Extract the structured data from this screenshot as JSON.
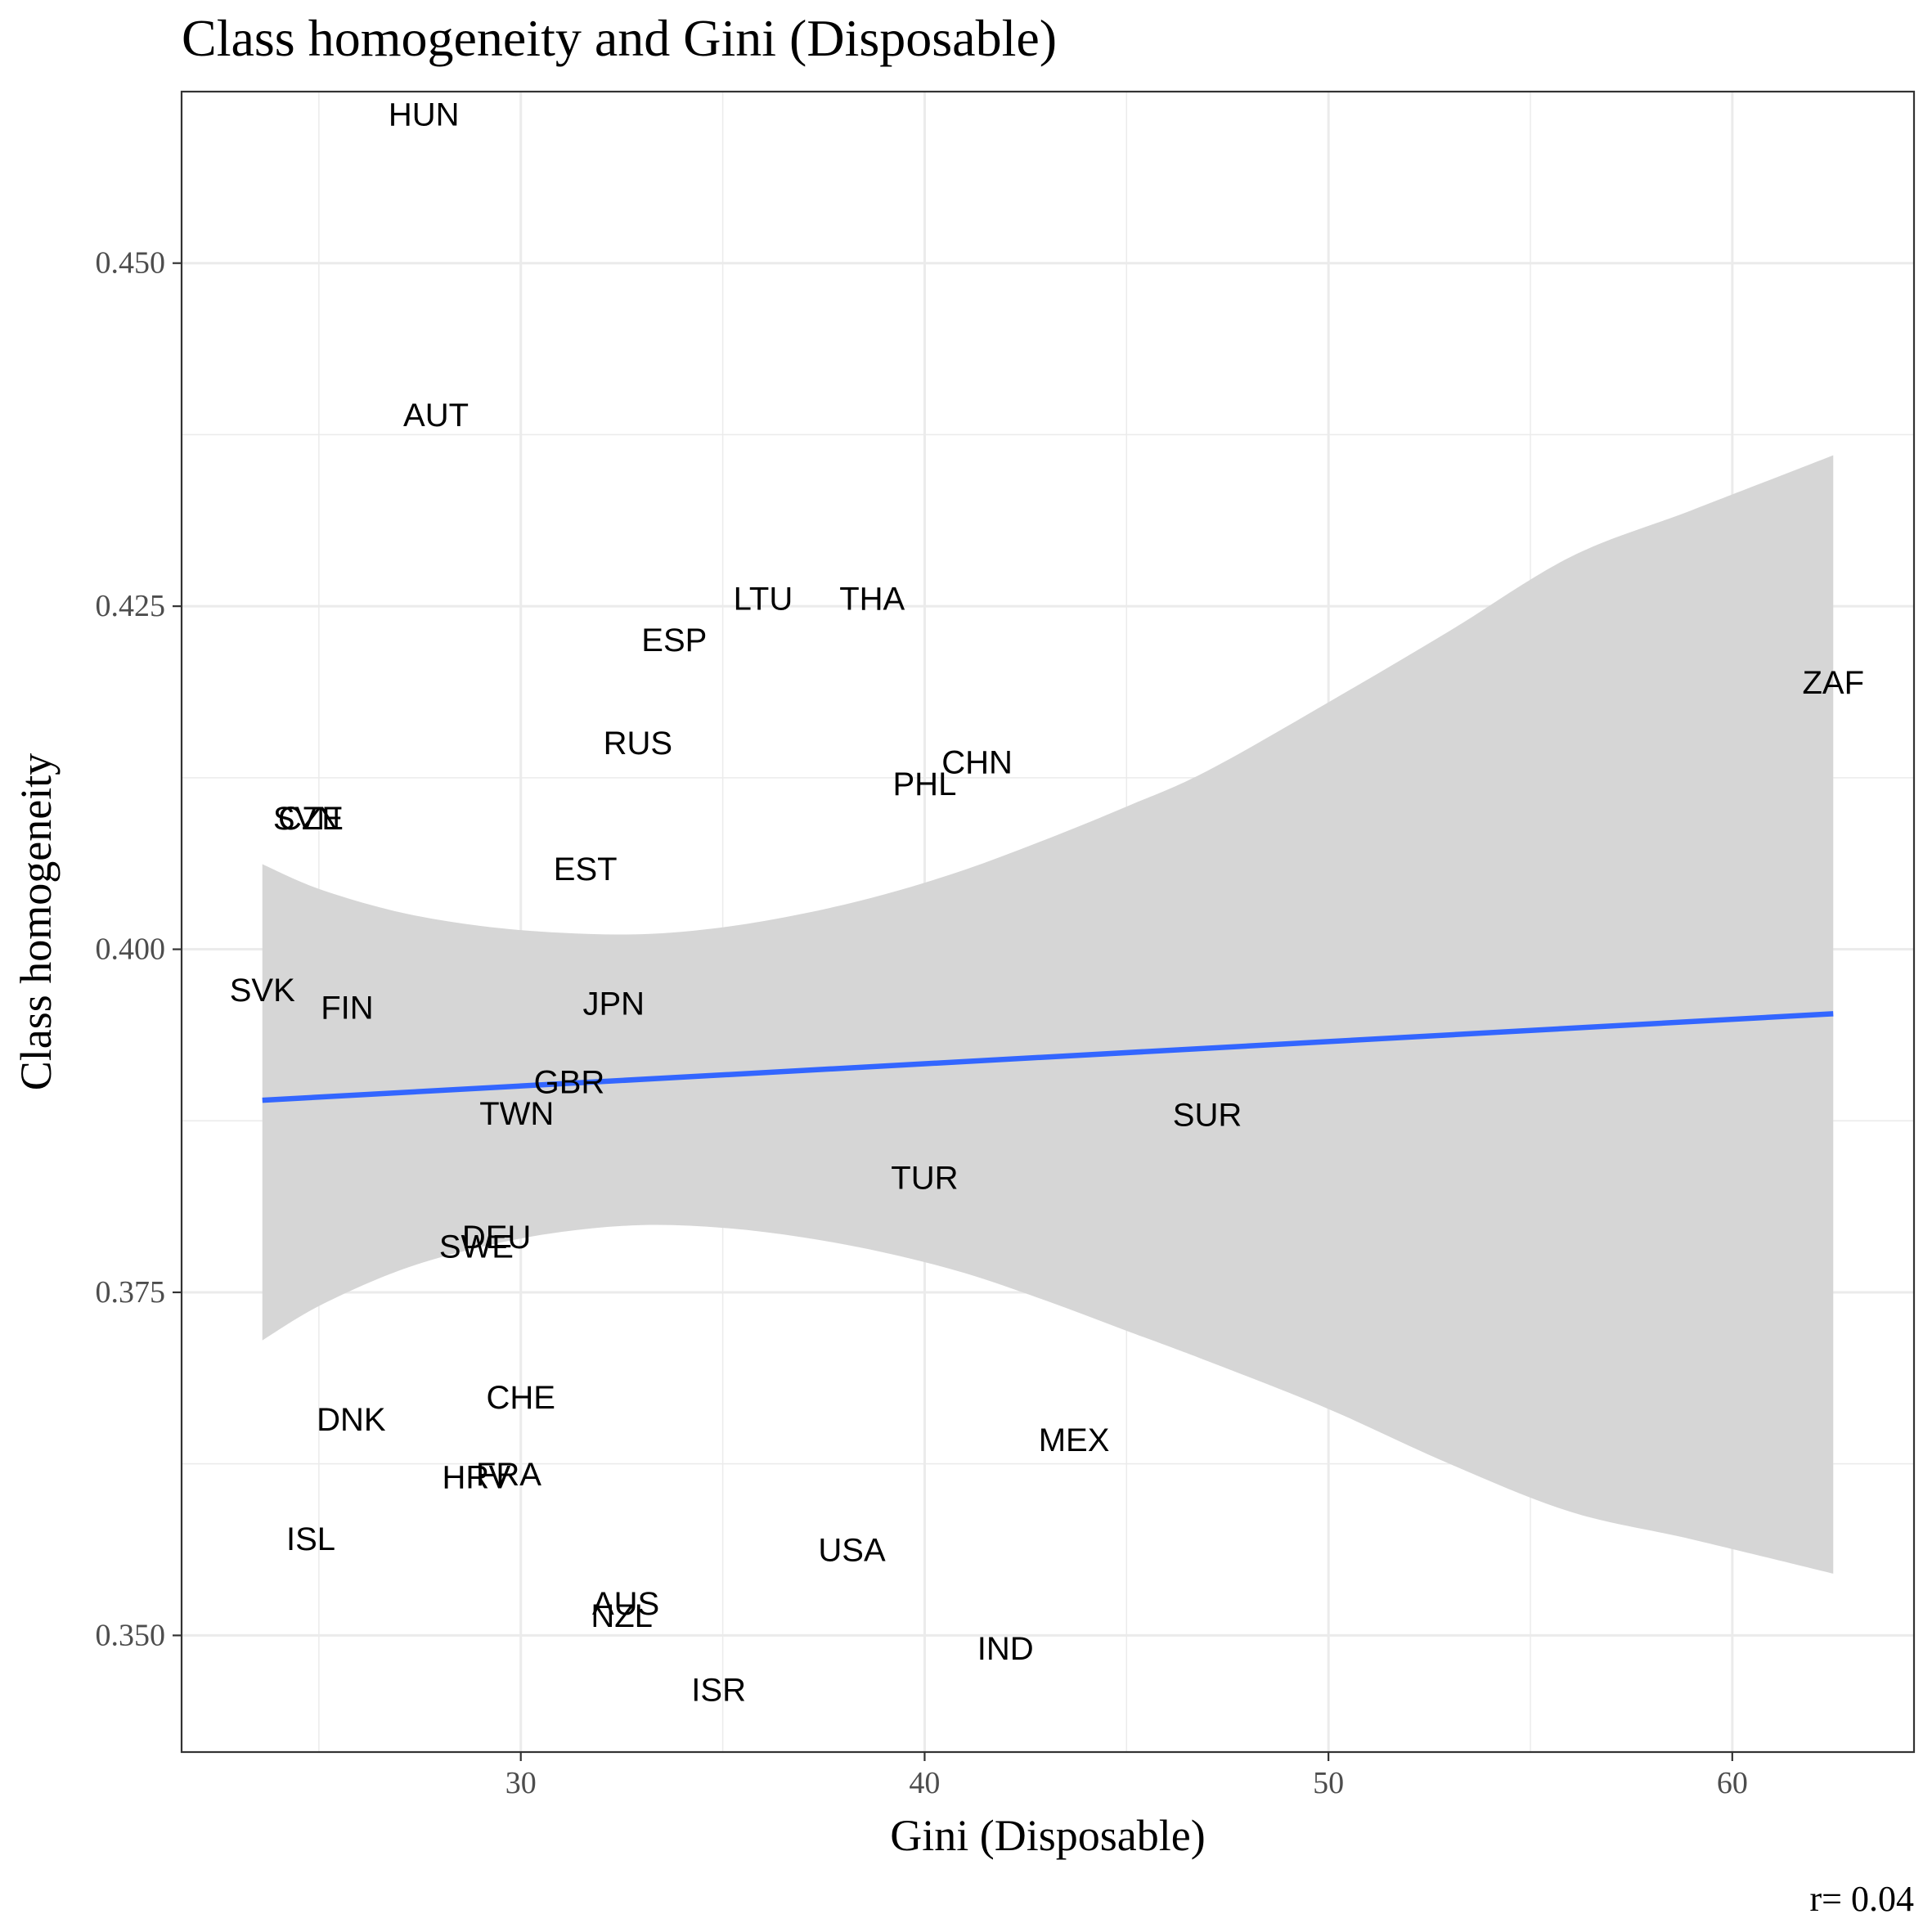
{
  "chart_data": {
    "type": "scatter",
    "title": "Class homogeneity and Gini (Disposable)",
    "xlabel": "Gini (Disposable)",
    "ylabel": "Class homogeneity",
    "caption": "r= 0.04",
    "xlim": [
      21.6,
      64.5
    ],
    "ylim": [
      0.3415,
      0.4625
    ],
    "x_ticks": [
      30,
      40,
      50,
      60
    ],
    "x_tick_labels": [
      "30",
      "40",
      "50",
      "60"
    ],
    "y_ticks": [
      0.35,
      0.375,
      0.4,
      0.425,
      0.45
    ],
    "y_tick_labels": [
      "0.350",
      "0.375",
      "0.400",
      "0.425",
      "0.450"
    ],
    "x_minor_ticks": [
      25,
      35,
      45,
      55
    ],
    "y_minor_ticks": [
      0.3625,
      0.3875,
      0.4125,
      0.4375
    ],
    "grid": true,
    "points": [
      {
        "label": "HUN",
        "x": 27.6,
        "y": 0.4608
      },
      {
        "label": "AUT",
        "x": 27.9,
        "y": 0.4389
      },
      {
        "label": "LTU",
        "x": 36.0,
        "y": 0.4255
      },
      {
        "label": "THA",
        "x": 38.7,
        "y": 0.4255
      },
      {
        "label": "ESP",
        "x": 33.8,
        "y": 0.4225
      },
      {
        "label": "ZAF",
        "x": 62.5,
        "y": 0.4194
      },
      {
        "label": "RUS",
        "x": 32.9,
        "y": 0.415
      },
      {
        "label": "CHN",
        "x": 41.3,
        "y": 0.4136
      },
      {
        "label": "PHL",
        "x": 40.0,
        "y": 0.412
      },
      {
        "label": "SVN",
        "x": 24.7,
        "y": 0.4095
      },
      {
        "label": "CZE",
        "x": 24.8,
        "y": 0.4095
      },
      {
        "label": "EST",
        "x": 31.6,
        "y": 0.4058
      },
      {
        "label": "SVK",
        "x": 23.6,
        "y": 0.397
      },
      {
        "label": "FIN",
        "x": 25.7,
        "y": 0.3957
      },
      {
        "label": "JPN",
        "x": 32.3,
        "y": 0.396
      },
      {
        "label": "GBR",
        "x": 31.2,
        "y": 0.3903
      },
      {
        "label": "TWN",
        "x": 29.9,
        "y": 0.388
      },
      {
        "label": "SUR",
        "x": 47.0,
        "y": 0.3879
      },
      {
        "label": "TUR",
        "x": 40.0,
        "y": 0.3833
      },
      {
        "label": "DEU",
        "x": 29.4,
        "y": 0.379
      },
      {
        "label": "SWE",
        "x": 28.9,
        "y": 0.3783
      },
      {
        "label": "CHE",
        "x": 30.0,
        "y": 0.3673
      },
      {
        "label": "DNK",
        "x": 25.8,
        "y": 0.3657
      },
      {
        "label": "MEX",
        "x": 43.7,
        "y": 0.3642
      },
      {
        "label": "HRV",
        "x": 28.9,
        "y": 0.3615
      },
      {
        "label": "FRA",
        "x": 29.7,
        "y": 0.3617
      },
      {
        "label": "ISL",
        "x": 24.8,
        "y": 0.357
      },
      {
        "label": "USA",
        "x": 38.2,
        "y": 0.3562
      },
      {
        "label": "AUS",
        "x": 32.6,
        "y": 0.3523
      },
      {
        "label": "NZL",
        "x": 32.5,
        "y": 0.3514
      },
      {
        "label": "IND",
        "x": 42.0,
        "y": 0.349
      },
      {
        "label": "ISR",
        "x": 34.9,
        "y": 0.346
      }
    ],
    "fit": {
      "method": "lm",
      "color": "#3366FF",
      "x_range": [
        23.6,
        62.5
      ],
      "band_color": "#D6D6D6",
      "line": [
        {
          "x": 23.6,
          "y": 0.389
        },
        {
          "x": 62.5,
          "y": 0.3953
        }
      ],
      "band_upper": [
        {
          "x": 23.6,
          "y": 0.4062
        },
        {
          "x": 25.0,
          "y": 0.4044
        },
        {
          "x": 27.0,
          "y": 0.4027
        },
        {
          "x": 29.0,
          "y": 0.4017
        },
        {
          "x": 31.0,
          "y": 0.4012
        },
        {
          "x": 33.0,
          "y": 0.4011
        },
        {
          "x": 35.0,
          "y": 0.4016
        },
        {
          "x": 37.0,
          "y": 0.4026
        },
        {
          "x": 39.0,
          "y": 0.404
        },
        {
          "x": 41.0,
          "y": 0.4058
        },
        {
          "x": 43.0,
          "y": 0.408
        },
        {
          "x": 45.0,
          "y": 0.4104
        },
        {
          "x": 47.0,
          "y": 0.413
        },
        {
          "x": 50.0,
          "y": 0.418
        },
        {
          "x": 53.0,
          "y": 0.4232
        },
        {
          "x": 56.0,
          "y": 0.4286
        },
        {
          "x": 59.0,
          "y": 0.432
        },
        {
          "x": 62.5,
          "y": 0.436
        }
      ],
      "band_lower": [
        {
          "x": 23.6,
          "y": 0.3715
        },
        {
          "x": 25.0,
          "y": 0.374
        },
        {
          "x": 27.0,
          "y": 0.3766
        },
        {
          "x": 29.0,
          "y": 0.3783
        },
        {
          "x": 31.0,
          "y": 0.3794
        },
        {
          "x": 33.0,
          "y": 0.3799
        },
        {
          "x": 35.0,
          "y": 0.3797
        },
        {
          "x": 37.0,
          "y": 0.379
        },
        {
          "x": 39.0,
          "y": 0.3779
        },
        {
          "x": 41.0,
          "y": 0.3764
        },
        {
          "x": 43.0,
          "y": 0.3744
        },
        {
          "x": 45.0,
          "y": 0.3722
        },
        {
          "x": 47.0,
          "y": 0.37
        },
        {
          "x": 50.0,
          "y": 0.3665
        },
        {
          "x": 53.0,
          "y": 0.3625
        },
        {
          "x": 56.0,
          "y": 0.359
        },
        {
          "x": 59.0,
          "y": 0.357
        },
        {
          "x": 62.5,
          "y": 0.3545
        }
      ]
    }
  }
}
